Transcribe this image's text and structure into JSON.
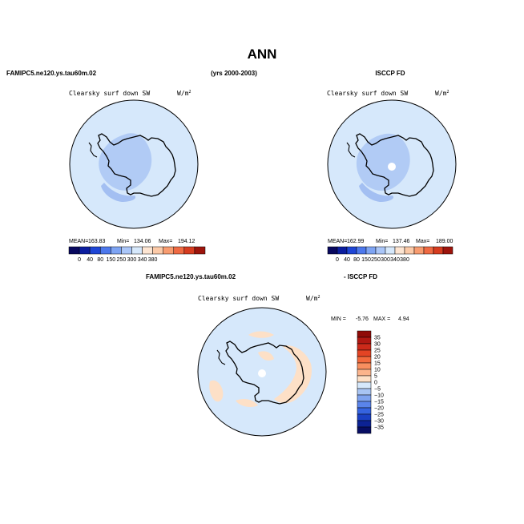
{
  "page": {
    "title": "ANN",
    "case_label": "FAMIPC5.ne120.ys.tau60m.02",
    "years": "(yrs 2000-2003)",
    "obs_label": "ISCCP FD",
    "diff_case_label": "FAMIPC5.ne120.ys.tau60m.02",
    "diff_obs_label": "- ISCCP FD"
  },
  "colors": {
    "ocean": "#d6e8fb",
    "land_high": "#b1cbf5",
    "land_mid": "#a3bff2",
    "diff_pos": "#fde0c7",
    "coast": "#000000",
    "pole_hole": "#ffffff"
  },
  "chart_data": [
    {
      "type": "heatmap",
      "panel": "model",
      "title": "Clearsky surf down SW",
      "units": "W/m",
      "units_sup": "2",
      "stats": {
        "mean_label": "MEAN=",
        "mean": "163.83",
        "min_label": "Min=",
        "min": "134.06",
        "max_label": "Max=",
        "max": "194.12"
      },
      "colorbar": {
        "orientation": "horizontal",
        "tick_labels": [
          "0",
          "40",
          "80",
          "150",
          "250",
          "300",
          "340",
          "380"
        ],
        "colors": [
          "#08085e",
          "#0b1d9e",
          "#1f46d6",
          "#4d78ec",
          "#7ea4f3",
          "#aac6f8",
          "#d6e8fb",
          "#fde5d2",
          "#fccaa8",
          "#f89c70",
          "#ef6a43",
          "#d63c20",
          "#9d140c"
        ]
      },
      "has_pole_hole": false
    },
    {
      "type": "heatmap",
      "panel": "observation",
      "title": "Clearsky surf down SW",
      "units": "W/m",
      "units_sup": "2",
      "stats": {
        "mean_label": "MEAN=",
        "mean": "162.99",
        "min_label": "Min=",
        "min": "137.46",
        "max_label": "Max=",
        "max": "189.00"
      },
      "colorbar": {
        "orientation": "horizontal",
        "tick_labels": [
          "0",
          "40",
          "80",
          "150",
          "250",
          "300",
          "340",
          "380"
        ],
        "colors": [
          "#08085e",
          "#0b1d9e",
          "#1f46d6",
          "#4d78ec",
          "#7ea4f3",
          "#aac6f8",
          "#d6e8fb",
          "#fde5d2",
          "#fccaa8",
          "#f89c70",
          "#ef6a43",
          "#d63c20",
          "#9d140c"
        ]
      },
      "has_pole_hole": true
    },
    {
      "type": "heatmap",
      "panel": "difference",
      "title": "Clearsky surf down SW",
      "units": "W/m",
      "units_sup": "2",
      "stats": {
        "min_label": "MIN =",
        "min": "-5.76",
        "max_label": "MAX =",
        "max": "4.94"
      },
      "colorbar": {
        "orientation": "vertical",
        "tick_labels": [
          "35",
          "30",
          "25",
          "20",
          "15",
          "10",
          "5",
          "0",
          "−5",
          "−10",
          "−15",
          "−20",
          "−25",
          "−30",
          "−35"
        ],
        "colors": [
          "#8f0b08",
          "#b01812",
          "#cc2a1a",
          "#e34424",
          "#f26a3d",
          "#f88f5f",
          "#fbb48c",
          "#fde0c7",
          "#d6e8fb",
          "#a8c4f3",
          "#7fa3ef",
          "#5a84ea",
          "#3563e0",
          "#1a40c4",
          "#0c2294",
          "#070d63"
        ]
      },
      "has_pole_hole": true
    }
  ]
}
